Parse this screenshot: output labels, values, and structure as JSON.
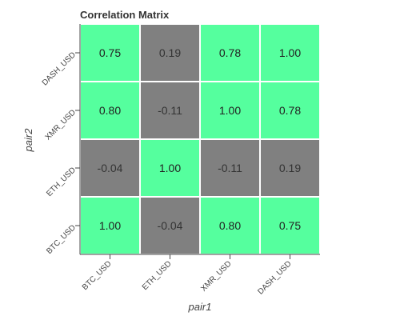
{
  "chart_data": {
    "type": "heatmap",
    "title": "Correlation Matrix",
    "xlabel": "pair1",
    "ylabel": "pair2",
    "x_categories": [
      "BTC_USD",
      "ETH_USD",
      "XMR_USD",
      "DASH_USD"
    ],
    "y_categories": [
      "BTC_USD",
      "ETH_USD",
      "XMR_USD",
      "DASH_USD"
    ],
    "values": [
      [
        1.0,
        -0.04,
        0.8,
        0.75
      ],
      [
        -0.04,
        1.0,
        -0.11,
        0.19
      ],
      [
        0.8,
        -0.11,
        1.0,
        0.78
      ],
      [
        0.75,
        0.19,
        0.78,
        1.0
      ]
    ],
    "value_format_decimals": 2,
    "color_high": "#55FF9E",
    "color_low": "#808080",
    "text_color_high": "#222222",
    "text_color_low": "#333333",
    "threshold": 0.5,
    "grid": false
  }
}
